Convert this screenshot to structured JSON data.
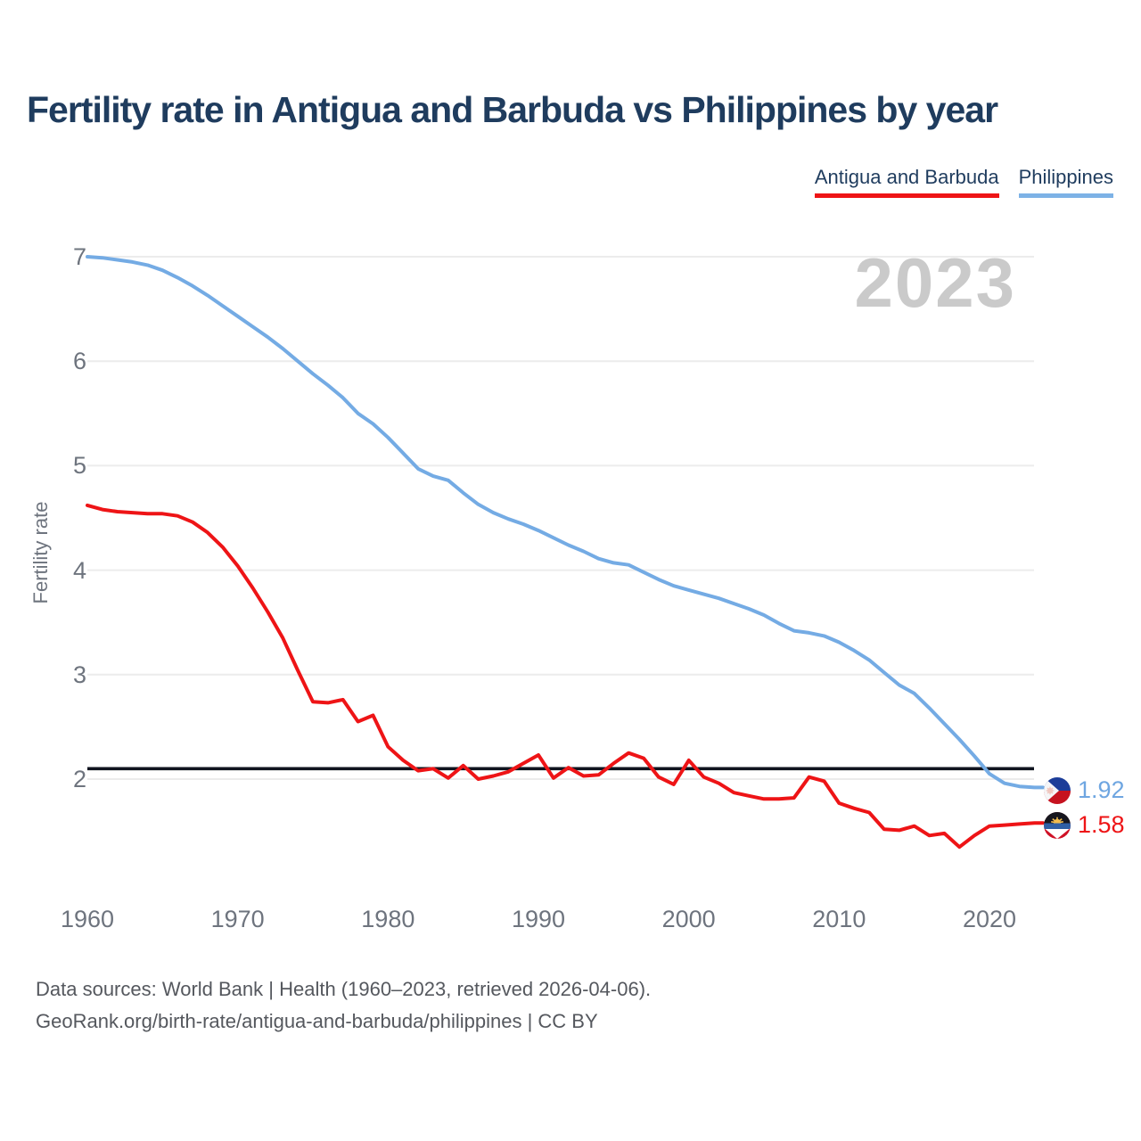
{
  "header": {
    "title": "Fertility rate in Antigua and Barbuda vs Philippines by year"
  },
  "legend": {
    "items": [
      {
        "label": "Antigua and Barbuda",
        "color": "#ee1416"
      },
      {
        "label": "Philippines",
        "color": "#7db2e6"
      }
    ]
  },
  "watermark": "2023",
  "y_axis": {
    "label": "Fertility rate",
    "ticks": [
      "7",
      "6",
      "5",
      "4",
      "3",
      "2"
    ]
  },
  "x_axis": {
    "ticks": [
      "1960",
      "1970",
      "1980",
      "1990",
      "2000",
      "2010",
      "2020"
    ]
  },
  "end_labels": [
    {
      "series": "Philippines",
      "value": "1.92",
      "color": "#6fa6e1",
      "flag": "philippines-flag-icon"
    },
    {
      "series": "Antigua and Barbuda",
      "value": "1.58",
      "color": "#ee1416",
      "flag": "antigua-and-barbuda-flag-icon"
    }
  ],
  "footer": {
    "line1": "Data sources: World Bank | Health (1960–2023, retrieved 2026-04-06).",
    "line2": "GeoRank.org/birth-rate/antigua-and-barbuda/philippines | CC BY"
  },
  "chart_data": {
    "type": "line",
    "title": "Fertility rate in Antigua and Barbuda vs Philippines by year",
    "xlabel": "",
    "ylabel": "Fertility rate",
    "grid": "horizontal",
    "legend_position": "top-right",
    "xlim": [
      1960,
      2023
    ],
    "ylim": [
      1.3,
      7.05
    ],
    "x_ticks": [
      1960,
      1970,
      1980,
      1990,
      2000,
      2010,
      2020
    ],
    "y_ticks": [
      2,
      3,
      4,
      5,
      6,
      7
    ],
    "reference_line": {
      "value": 2.1,
      "color": "#10141f"
    },
    "years": [
      1960,
      1961,
      1962,
      1963,
      1964,
      1965,
      1966,
      1967,
      1968,
      1969,
      1970,
      1971,
      1972,
      1973,
      1974,
      1975,
      1976,
      1977,
      1978,
      1979,
      1980,
      1981,
      1982,
      1983,
      1984,
      1985,
      1986,
      1987,
      1988,
      1989,
      1990,
      1991,
      1992,
      1993,
      1994,
      1995,
      1996,
      1997,
      1998,
      1999,
      2000,
      2001,
      2002,
      2003,
      2004,
      2005,
      2006,
      2007,
      2008,
      2009,
      2010,
      2011,
      2012,
      2013,
      2014,
      2015,
      2016,
      2017,
      2018,
      2019,
      2020,
      2021,
      2022,
      2023
    ],
    "series": [
      {
        "id": "philippines",
        "name": "Philippines",
        "color": "#74abe4",
        "end_value": 1.92,
        "values": [
          7.0,
          6.99,
          6.97,
          6.95,
          6.92,
          6.87,
          6.8,
          6.72,
          6.63,
          6.53,
          6.43,
          6.33,
          6.23,
          6.12,
          6.0,
          5.88,
          5.77,
          5.65,
          5.5,
          5.4,
          5.27,
          5.12,
          4.97,
          4.9,
          4.86,
          4.74,
          4.63,
          4.55,
          4.49,
          4.44,
          4.38,
          4.31,
          4.24,
          4.18,
          4.11,
          4.07,
          4.05,
          3.98,
          3.91,
          3.85,
          3.81,
          3.77,
          3.73,
          3.68,
          3.63,
          3.57,
          3.49,
          3.42,
          3.4,
          3.37,
          3.31,
          3.23,
          3.14,
          3.02,
          2.9,
          2.82,
          2.68,
          2.53,
          2.38,
          2.22,
          2.05,
          1.96,
          1.93,
          1.92
        ]
      },
      {
        "id": "antigua-and-barbuda",
        "name": "Antigua and Barbuda",
        "color": "#ee1416",
        "end_value": 1.58,
        "values": [
          4.62,
          4.58,
          4.56,
          4.55,
          4.54,
          4.54,
          4.52,
          4.46,
          4.36,
          4.22,
          4.04,
          3.83,
          3.6,
          3.35,
          3.04,
          2.74,
          2.73,
          2.76,
          2.55,
          2.61,
          2.31,
          2.18,
          2.08,
          2.1,
          2.01,
          2.13,
          2.0,
          2.03,
          2.07,
          2.15,
          2.23,
          2.01,
          2.11,
          2.03,
          2.04,
          2.15,
          2.25,
          2.2,
          2.02,
          1.95,
          2.18,
          2.02,
          1.96,
          1.87,
          1.84,
          1.81,
          1.81,
          1.82,
          2.02,
          1.98,
          1.77,
          1.72,
          1.68,
          1.52,
          1.51,
          1.55,
          1.46,
          1.48,
          1.35,
          1.46,
          1.55,
          1.56,
          1.57,
          1.58
        ]
      }
    ]
  }
}
